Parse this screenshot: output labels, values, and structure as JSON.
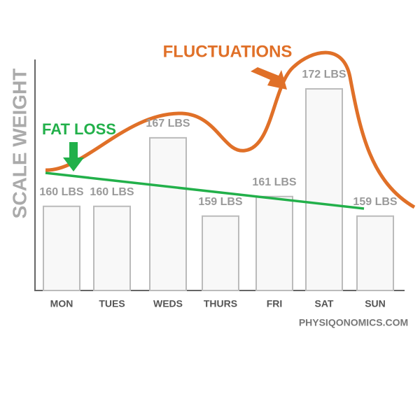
{
  "chart_data": {
    "type": "bar",
    "y_label": "SCALE WEIGHT",
    "categories": [
      "MON",
      "TUES",
      "WEDS",
      "THURS",
      "FRI",
      "SAT",
      "SUN"
    ],
    "values": [
      160,
      160,
      167,
      159,
      161,
      172,
      159
    ],
    "value_labels": [
      "160 LBS",
      "160 LBS",
      "167 LBS",
      "159 LBS",
      "161 LBS",
      "172 LBS",
      "159 LBS"
    ],
    "ylim": [
      151.4,
      175
    ],
    "color": "#f8f8f8",
    "annotations": [
      "FLUCTUATIONS",
      "FAT LOSS"
    ],
    "source": "PHYSIQONOMICS.COM"
  }
}
